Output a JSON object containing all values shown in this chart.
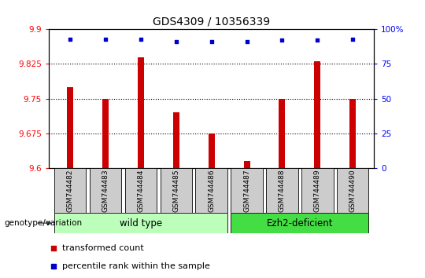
{
  "title": "GDS4309 / 10356339",
  "samples": [
    "GSM744482",
    "GSM744483",
    "GSM744484",
    "GSM744485",
    "GSM744486",
    "GSM744487",
    "GSM744488",
    "GSM744489",
    "GSM744490"
  ],
  "bar_values": [
    9.775,
    9.75,
    9.84,
    9.72,
    9.675,
    9.615,
    9.75,
    9.83,
    9.75
  ],
  "percentile_values": [
    93,
    93,
    93,
    91,
    91,
    91,
    92,
    92,
    93
  ],
  "bar_color": "#cc0000",
  "dot_color": "#0000cc",
  "ylim_left": [
    9.6,
    9.9
  ],
  "ylim_right": [
    0,
    100
  ],
  "yticks_left": [
    9.6,
    9.675,
    9.75,
    9.825,
    9.9
  ],
  "yticks_right": [
    0,
    25,
    50,
    75,
    100
  ],
  "ytick_labels_left": [
    "9.6",
    "9.675",
    "9.75",
    "9.825",
    "9.9"
  ],
  "ytick_labels_right": [
    "0",
    "25",
    "50",
    "75",
    "100%"
  ],
  "hlines": [
    9.675,
    9.75,
    9.825
  ],
  "wild_type_indices": [
    0,
    1,
    2,
    3,
    4
  ],
  "ezh2_indices": [
    5,
    6,
    7,
    8
  ],
  "wild_type_label": "wild type",
  "ezh2_label": "Ezh2-deficient",
  "wild_type_color": "#bbffbb",
  "ezh2_color": "#44dd44",
  "sample_box_color": "#cccccc",
  "legend_bar_label": "transformed count",
  "legend_dot_label": "percentile rank within the sample",
  "genotype_label": "genotype/variation",
  "bar_bottom": 9.6,
  "bar_width": 0.18
}
